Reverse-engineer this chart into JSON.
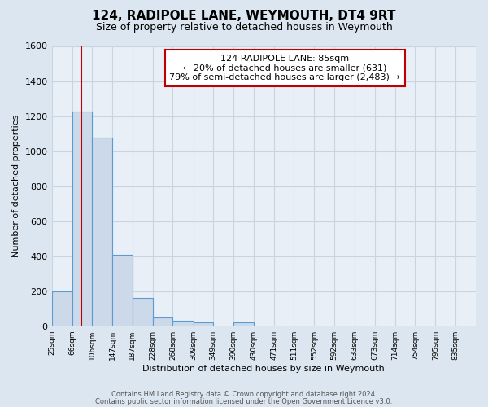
{
  "title": "124, RADIPOLE LANE, WEYMOUTH, DT4 9RT",
  "subtitle": "Size of property relative to detached houses in Weymouth",
  "xlabel": "Distribution of detached houses by size in Weymouth",
  "ylabel": "Number of detached properties",
  "bin_labels": [
    "25sqm",
    "66sqm",
    "106sqm",
    "147sqm",
    "187sqm",
    "228sqm",
    "268sqm",
    "309sqm",
    "349sqm",
    "390sqm",
    "430sqm",
    "471sqm",
    "511sqm",
    "552sqm",
    "592sqm",
    "633sqm",
    "673sqm",
    "714sqm",
    "754sqm",
    "795sqm",
    "835sqm"
  ],
  "bin_edges": [
    25,
    66,
    106,
    147,
    187,
    228,
    268,
    309,
    349,
    390,
    430,
    471,
    511,
    552,
    592,
    633,
    673,
    714,
    754,
    795,
    835
  ],
  "bar_heights": [
    200,
    1225,
    1075,
    410,
    160,
    50,
    30,
    20,
    0,
    20,
    0,
    0,
    0,
    0,
    0,
    0,
    0,
    0,
    0,
    0
  ],
  "bar_color": "#ccd9e8",
  "bar_edge_color": "#5b9bd5",
  "ylim": [
    0,
    1600
  ],
  "yticks": [
    0,
    200,
    400,
    600,
    800,
    1000,
    1200,
    1400,
    1600
  ],
  "property_size": 85,
  "vline_color": "#c00000",
  "annotation_title": "124 RADIPOLE LANE: 85sqm",
  "annotation_line1": "← 20% of detached houses are smaller (631)",
  "annotation_line2": "79% of semi-detached houses are larger (2,483) →",
  "annotation_box_facecolor": "#ffffff",
  "annotation_box_edgecolor": "#c00000",
  "fig_bg_color": "#dce6f0",
  "plot_bg_color": "#e8eff7",
  "grid_color": "#c8d4e0",
  "title_fontsize": 11,
  "subtitle_fontsize": 9,
  "footer_line1": "Contains HM Land Registry data © Crown copyright and database right 2024.",
  "footer_line2": "Contains public sector information licensed under the Open Government Licence v3.0."
}
